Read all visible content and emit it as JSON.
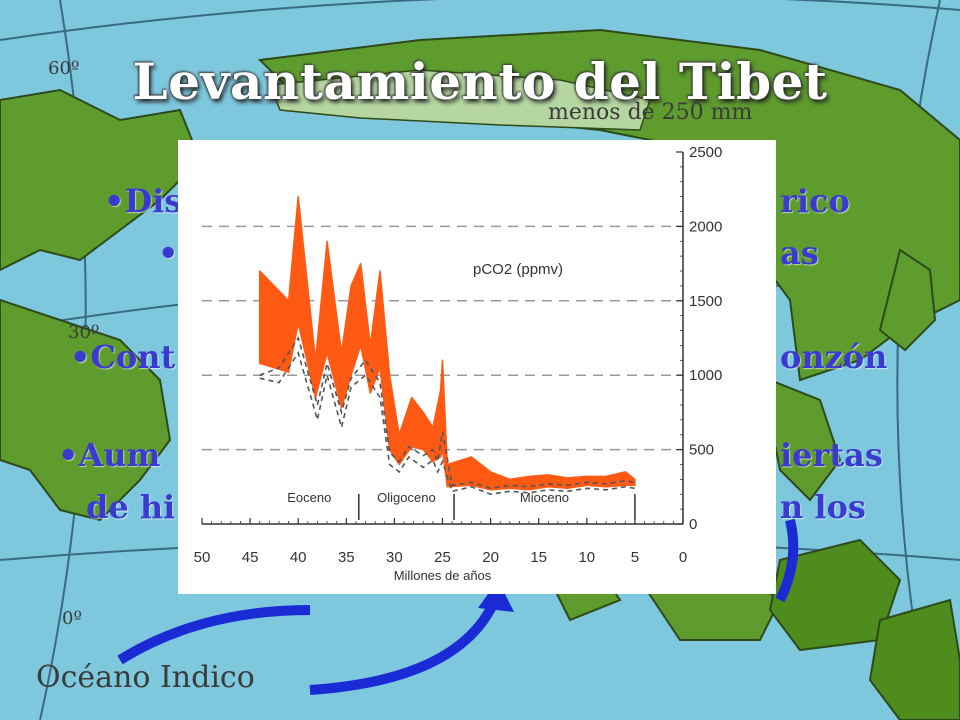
{
  "slide": {
    "title": "Levantamiento del Tibet",
    "rainfall_label": "menos de 250 mm",
    "ocean_label": "Océano Indico",
    "lat_60": "60º",
    "lat_30": "30º",
    "lat_0": "0º",
    "bullets": [
      {
        "left": "•Dis",
        "right": "rico"
      },
      {
        "left": "•",
        "right": "as"
      },
      {
        "left": "•Cont",
        "right": "onzón"
      },
      {
        "left": "•Aum",
        "right": "iertas"
      },
      {
        "left": "de hi",
        "right": "n los"
      }
    ]
  },
  "colors": {
    "ocean": "#7ec8de",
    "land": "#5f9c2e",
    "land_border": "#2e4a1a",
    "arrow": "#1a2bd6",
    "bullet_text": "#3a3ad0",
    "series_fill": "#ff5a14",
    "lower_bound": "#555555"
  },
  "chart_data": {
    "type": "area",
    "ylabel": "pCO2 (ppmv)",
    "xlabel": "Millones de años",
    "xlim": [
      50,
      0
    ],
    "ylim": [
      0,
      2500
    ],
    "x_ticks": [
      50,
      45,
      40,
      35,
      30,
      25,
      20,
      15,
      10,
      5,
      0
    ],
    "y_ticks": [
      0,
      500,
      1000,
      1500,
      2000,
      2500
    ],
    "grid": "horizontal dashed",
    "epochs": [
      {
        "name": "Eoceno",
        "from": 44,
        "to": 33.7
      },
      {
        "name": "Oligoceno",
        "from": 33.7,
        "to": 23.8
      },
      {
        "name": "Mioceno",
        "from": 23.8,
        "to": 5
      }
    ],
    "series": [
      {
        "x": [
          44,
          41,
          40,
          38.2,
          37,
          35.5,
          34.5,
          33.5,
          32.5,
          31.5,
          30.5,
          29.5,
          28.2,
          27,
          26,
          25.2,
          25,
          24.5,
          22,
          20,
          18,
          16,
          14,
          12,
          10,
          8,
          6,
          5
        ],
        "upper": [
          1700,
          1500,
          2200,
          1100,
          1900,
          1150,
          1600,
          1750,
          1200,
          1700,
          1000,
          600,
          850,
          750,
          650,
          900,
          1100,
          400,
          450,
          350,
          300,
          320,
          330,
          310,
          320,
          320,
          350,
          300
        ],
        "lower": [
          1080,
          1020,
          1350,
          850,
          1150,
          780,
          1000,
          1200,
          880,
          1050,
          500,
          400,
          520,
          500,
          420,
          450,
          500,
          250,
          260,
          230,
          240,
          230,
          250,
          240,
          260,
          250,
          260,
          260
        ]
      },
      {
        "x": [
          44,
          42,
          40,
          38,
          37,
          35.5,
          34.5,
          33,
          31.5,
          30.5,
          29.5,
          28.5,
          27,
          26,
          25.5,
          25,
          24,
          22,
          20,
          18,
          16,
          14,
          12,
          10,
          8,
          6,
          5
        ],
        "values": [
          980,
          950,
          1150,
          700,
          1000,
          650,
          920,
          1000,
          850,
          400,
          350,
          450,
          380,
          430,
          350,
          420,
          220,
          250,
          200,
          220,
          210,
          230,
          220,
          240,
          230,
          250,
          240
        ]
      },
      {
        "x": [
          44,
          42,
          40,
          38,
          37,
          35.5,
          34.5,
          33,
          31.5,
          30.5,
          29.5,
          28.5,
          27,
          26,
          25.5,
          25,
          24,
          22,
          20,
          18,
          16,
          14,
          12,
          10,
          8,
          6,
          5
        ],
        "values": [
          1000,
          1050,
          1250,
          800,
          1080,
          750,
          980,
          1100,
          950,
          480,
          420,
          520,
          460,
          500,
          420,
          620,
          260,
          280,
          240,
          260,
          250,
          270,
          260,
          280,
          270,
          290,
          280
        ]
      }
    ]
  }
}
